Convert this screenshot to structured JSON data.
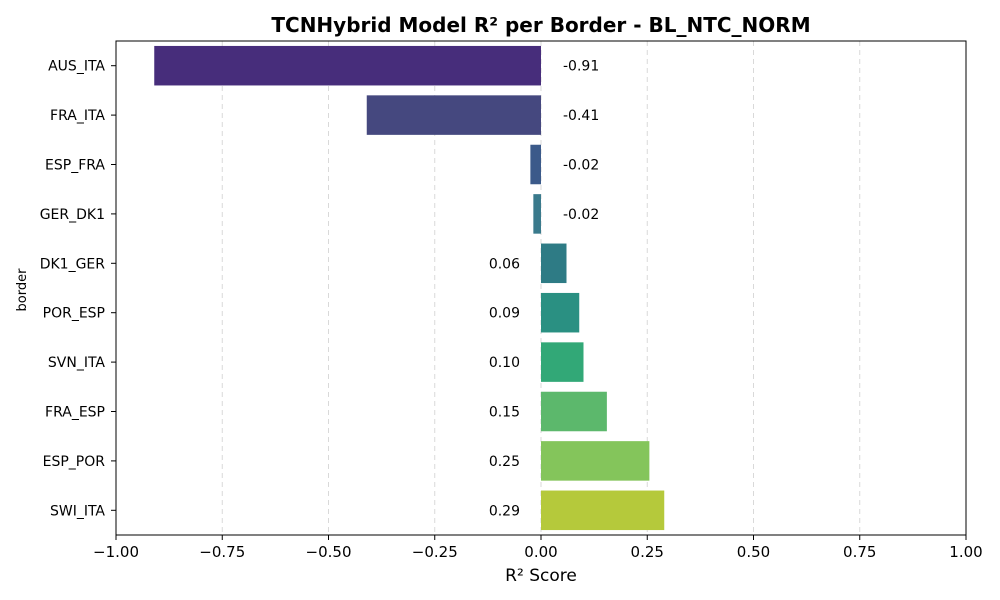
{
  "chart_data": {
    "type": "bar",
    "orientation": "horizontal",
    "title": "TCNHybrid Model R² per Border - BL_NTC_NORM",
    "xlabel": "R² Score",
    "ylabel": "border",
    "xlim": [
      -1.0,
      1.0
    ],
    "xticks": [
      "−1.00",
      "−0.75",
      "−0.50",
      "−0.25",
      "0.00",
      "0.25",
      "0.50",
      "0.75",
      "1.00"
    ],
    "xtick_values": [
      -1.0,
      -0.75,
      -0.5,
      -0.25,
      0.0,
      0.25,
      0.5,
      0.75,
      1.0
    ],
    "grid": "x-dashed",
    "categories": [
      "AUS_ITA",
      "FRA_ITA",
      "ESP_FRA",
      "GER_DK1",
      "DK1_GER",
      "POR_ESP",
      "SVN_ITA",
      "FRA_ESP",
      "ESP_POR",
      "SWI_ITA"
    ],
    "values": [
      -0.91,
      -0.41,
      -0.025,
      -0.018,
      0.06,
      0.09,
      0.1,
      0.155,
      0.255,
      0.29
    ],
    "value_labels": [
      "-0.91",
      "-0.41",
      "-0.02",
      "-0.02",
      "0.06",
      "0.09",
      "0.10",
      "0.15",
      "0.25",
      "0.29"
    ],
    "colors": [
      "#472d7b",
      "#45487f",
      "#3b5a8a",
      "#3a7a8c",
      "#2e7b85",
      "#2a9082",
      "#32a877",
      "#5cb86c",
      "#84c55b",
      "#b5c93b"
    ]
  }
}
